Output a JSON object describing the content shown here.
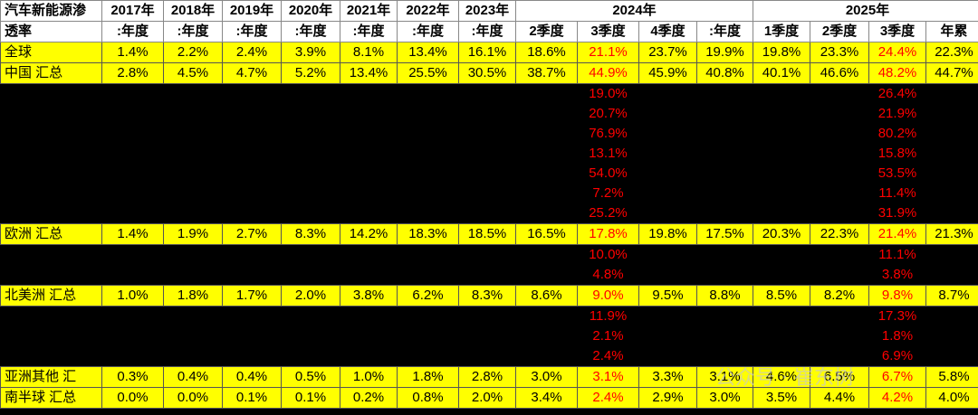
{
  "header": {
    "corner_line1": "汽车新能源渗",
    "corner_line2": "透率",
    "years": [
      "2017年",
      "2018年",
      "2019年",
      "2020年",
      "2021年",
      "2022年",
      "2023年"
    ],
    "annual_label": ":年度",
    "group_2024": "2024年",
    "group_2025": "2025年",
    "sub_2024": [
      "2季度",
      "3季度",
      "4季度",
      ":年度"
    ],
    "sub_2025": [
      "1季度",
      "2季度",
      "3季度",
      "年累"
    ]
  },
  "rows": [
    {
      "label": "全球",
      "values": [
        "1.4%",
        "2.2%",
        "2.4%",
        "3.9%",
        "8.1%",
        "13.4%",
        "16.1%",
        "18.6%",
        "21.1%",
        "23.7%",
        "19.9%",
        "19.8%",
        "23.3%",
        "24.4%",
        "22.3%"
      ]
    },
    {
      "label": "中国 汇总",
      "values": [
        "2.8%",
        "4.5%",
        "4.7%",
        "5.2%",
        "13.4%",
        "25.5%",
        "30.5%",
        "38.7%",
        "44.9%",
        "45.9%",
        "40.8%",
        "40.1%",
        "46.6%",
        "48.2%",
        "44.7%"
      ]
    },
    {
      "label": "",
      "q3_2024": "19.0%",
      "q3_2025": "26.4%"
    },
    {
      "label": "",
      "q3_2024": "20.7%",
      "q3_2025": "21.9%"
    },
    {
      "label": "",
      "q3_2024": "76.9%",
      "q3_2025": "80.2%"
    },
    {
      "label": "",
      "q3_2024": "13.1%",
      "q3_2025": "15.8%"
    },
    {
      "label": "",
      "q3_2024": "54.0%",
      "q3_2025": "53.5%"
    },
    {
      "label": "",
      "q3_2024": "7.2%",
      "q3_2025": "11.4%"
    },
    {
      "label": "",
      "q3_2024": "25.2%",
      "q3_2025": "31.9%"
    },
    {
      "label": "欧洲 汇总",
      "values": [
        "1.4%",
        "1.9%",
        "2.7%",
        "8.3%",
        "14.2%",
        "18.3%",
        "18.5%",
        "16.5%",
        "17.8%",
        "19.8%",
        "17.5%",
        "20.3%",
        "22.3%",
        "21.4%",
        "21.3%"
      ]
    },
    {
      "label": "",
      "q3_2024": "10.0%",
      "q3_2025": "11.1%"
    },
    {
      "label": "",
      "q3_2024": "4.8%",
      "q3_2025": "3.8%"
    },
    {
      "label": "北美洲 汇总",
      "values": [
        "1.0%",
        "1.8%",
        "1.7%",
        "2.0%",
        "3.8%",
        "6.2%",
        "8.3%",
        "8.6%",
        "9.0%",
        "9.5%",
        "8.8%",
        "8.5%",
        "8.2%",
        "9.8%",
        "8.7%"
      ]
    },
    {
      "label": "",
      "q3_2024": "11.9%",
      "q3_2025": "17.3%"
    },
    {
      "label": "",
      "q3_2024": "2.1%",
      "q3_2025": "1.8%"
    },
    {
      "label": "",
      "q3_2024": "2.4%",
      "q3_2025": "6.9%"
    },
    {
      "label": "亚洲其他 汇",
      "values": [
        "0.3%",
        "0.4%",
        "0.4%",
        "0.5%",
        "1.0%",
        "1.8%",
        "2.8%",
        "3.0%",
        "3.1%",
        "3.3%",
        "3.1%",
        "4.6%",
        "6.5%",
        "6.7%",
        "5.8%"
      ]
    },
    {
      "label": "南半球 汇总",
      "values": [
        "0.0%",
        "0.0%",
        "0.1%",
        "0.1%",
        "0.2%",
        "0.8%",
        "2.0%",
        "3.4%",
        "2.4%",
        "2.9%",
        "3.0%",
        "3.5%",
        "4.4%",
        "4.2%",
        "4.0%"
      ]
    }
  ],
  "watermark": "公众号 · 崔东树",
  "colors": {
    "highlight": "#ffff00",
    "emphasis": "#ff0000",
    "background": "#000000"
  }
}
